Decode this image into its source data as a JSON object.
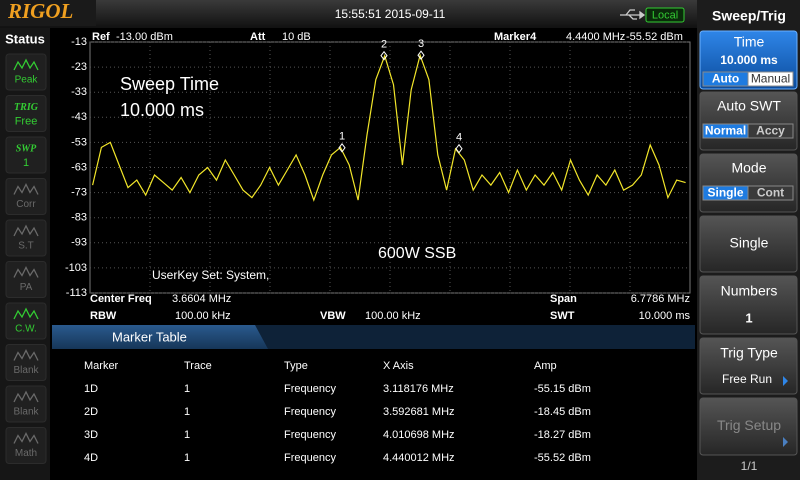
{
  "header": {
    "logo": "RIGOL",
    "datetime": "15:55:51 2015-09-11",
    "remote": "Local"
  },
  "status": {
    "title": "Status",
    "items": [
      {
        "label": "Peak",
        "active": true
      },
      {
        "top": "TRIG",
        "bottom": "Free",
        "active": true
      },
      {
        "top": "SWP",
        "bottom": "1",
        "active": true
      },
      {
        "label": "Corr",
        "active": false
      },
      {
        "label": "S.T",
        "active": false
      },
      {
        "label": "PA",
        "active": false
      },
      {
        "label": "C.W.",
        "active": true
      },
      {
        "label": "Blank",
        "active": false
      },
      {
        "label": "Blank",
        "active": false
      },
      {
        "label": "Math",
        "active": false
      }
    ]
  },
  "info": {
    "ref_label": "Ref",
    "ref": "-13.00 dBm",
    "att_label": "Att",
    "att": "10 dB",
    "marker_label": "Marker4",
    "marker_freq": "4.4400 MHz",
    "marker_amp": "-55.52 dBm",
    "center_label": "Center Freq",
    "center": "3.6604 MHz",
    "span_label": "Span",
    "span": "6.7786 MHz",
    "rbw_label": "RBW",
    "rbw": "100.00 kHz",
    "vbw_label": "VBW",
    "vbw": "100.00 kHz",
    "swt_label": "SWT",
    "swt": "10.000 ms"
  },
  "chart_data": {
    "type": "line",
    "color": "#f2e62a",
    "xlim": [
      0.2711,
      7.0497
    ],
    "ylim": [
      -113,
      -13
    ],
    "yticks": [
      -13,
      -23,
      -33,
      -43,
      -53,
      -63,
      -73,
      -83,
      -93,
      -103,
      -113
    ],
    "grid": true,
    "annotations": [
      "Sweep Time",
      "10.000 ms",
      "600W SSB",
      "UserKey Set:  System,"
    ],
    "x": [
      0.3,
      0.4,
      0.5,
      0.6,
      0.7,
      0.8,
      0.9,
      1.0,
      1.1,
      1.2,
      1.3,
      1.4,
      1.5,
      1.6,
      1.7,
      1.8,
      1.9,
      2.0,
      2.1,
      2.2,
      2.3,
      2.4,
      2.5,
      2.6,
      2.7,
      2.8,
      2.9,
      3.0,
      3.1,
      3.2,
      3.3,
      3.4,
      3.5,
      3.6,
      3.7,
      3.8,
      3.9,
      4.0,
      4.1,
      4.2,
      4.3,
      4.4,
      4.5,
      4.6,
      4.7,
      4.8,
      4.9,
      5.0,
      5.1,
      5.2,
      5.3,
      5.4,
      5.5,
      5.6,
      5.7,
      5.8,
      5.9,
      6.0,
      6.1,
      6.2,
      6.3,
      6.4,
      6.5,
      6.6,
      6.7,
      6.8,
      6.9,
      7.0
    ],
    "values": [
      -70,
      -55,
      -53,
      -62,
      -71,
      -68,
      -74,
      -66,
      -69,
      -72,
      -67,
      -73,
      -66,
      -63,
      -68,
      -60,
      -66,
      -72,
      -75,
      -70,
      -63,
      -70,
      -64,
      -58,
      -66,
      -76,
      -66,
      -58,
      -55,
      -62,
      -76,
      -50,
      -28,
      -18.5,
      -30,
      -62,
      -32,
      -18.3,
      -28,
      -58,
      -72,
      -55.6,
      -60,
      -72,
      -66,
      -70,
      -65,
      -73,
      -64,
      -72,
      -66,
      -70,
      -65,
      -72,
      -60,
      -68,
      -74,
      -66,
      -70,
      -64,
      -72,
      -70,
      -66,
      -54,
      -62,
      -75,
      -68,
      -69
    ],
    "markers": [
      {
        "label": "1",
        "x": 3.118176,
        "y": -55.15
      },
      {
        "label": "2",
        "x": 3.592681,
        "y": -18.45
      },
      {
        "label": "3",
        "x": 4.010698,
        "y": -18.27
      },
      {
        "label": "4",
        "x": 4.440012,
        "y": -55.52
      }
    ]
  },
  "marker_table": {
    "title": "Marker Table",
    "columns": [
      "Marker",
      "Trace",
      "Type",
      "X Axis",
      "Amp"
    ],
    "rows": [
      [
        "1D",
        "1",
        "Frequency",
        "3.118176 MHz",
        "-55.15 dBm"
      ],
      [
        "2D",
        "1",
        "Frequency",
        "3.592681 MHz",
        "-18.45 dBm"
      ],
      [
        "3D",
        "1",
        "Frequency",
        "4.010698 MHz",
        "-18.27 dBm"
      ],
      [
        "4D",
        "1",
        "Frequency",
        "4.440012 MHz",
        "-55.52 dBm"
      ]
    ]
  },
  "softkeys": {
    "title": "Sweep/Trig",
    "keys": [
      {
        "label": "Time",
        "value": "10.000 ms",
        "options": [
          "Auto",
          "Manual"
        ],
        "selected": 0,
        "highlight": true
      },
      {
        "label": "Auto SWT",
        "options": [
          "Normal",
          "Accy"
        ],
        "selected": 0
      },
      {
        "label": "Mode",
        "options": [
          "Single",
          "Cont"
        ],
        "selected": 0
      },
      {
        "label": "Single"
      },
      {
        "label": "Numbers",
        "value": "1"
      },
      {
        "label": "Trig Type",
        "value": "Free Run",
        "arrow": true
      },
      {
        "label": "Trig Setup",
        "disabled": true,
        "arrow": true
      }
    ],
    "page": "1/1"
  }
}
